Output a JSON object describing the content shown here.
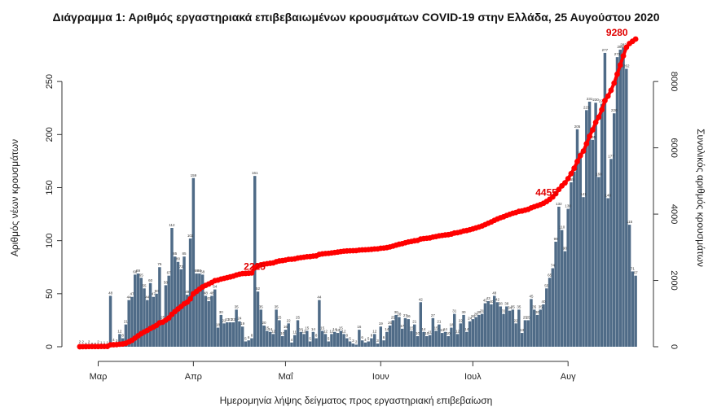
{
  "chart_data": {
    "type": "bar",
    "title": "Διάγραμμα 1: Αριθμός εργαστηριακά επιβεβαιωμένων κρουσμάτων COVID-19 στην Ελλάδα, 25 Αυγούστου 2020",
    "xlabel": "Ημερομηνία λήψης δείγματος προς εργαστηριακή επιβεβαίωση",
    "ylabel": "Αριθμός νέων κρουσμάτων",
    "y2label": "Συνολικός αριθμός κρουσμάτων",
    "ylim": [
      0,
      290
    ],
    "y2lim": [
      0,
      9280
    ],
    "yticks": [
      0,
      50,
      100,
      150,
      200,
      250
    ],
    "y2ticks": [
      0,
      2000,
      4000,
      6000,
      8000
    ],
    "x_month_labels": [
      "Μαρ",
      "Απρ",
      "Μαΐ",
      "Ιουν",
      "Ιουλ",
      "Αυγ"
    ],
    "x_month_day_index": [
      6,
      37,
      67,
      98,
      128,
      159
    ],
    "start_day": "2020-02-24",
    "daily_cases": [
      2,
      2,
      0,
      2,
      0,
      0,
      2,
      1,
      1,
      1,
      48,
      4,
      3,
      12,
      8,
      21,
      44,
      47,
      68,
      69,
      65,
      55,
      44,
      60,
      47,
      50,
      75,
      25,
      58,
      67,
      112,
      85,
      80,
      73,
      85,
      49,
      102,
      159,
      69,
      69,
      68,
      48,
      43,
      48,
      54,
      18,
      30,
      22,
      23,
      23,
      23,
      35,
      24,
      19,
      5,
      6,
      8,
      161,
      52,
      35,
      20,
      15,
      14,
      12,
      35,
      25,
      10,
      16,
      22,
      4,
      11,
      25,
      14,
      12,
      15,
      5,
      14,
      8,
      44,
      15,
      12,
      5,
      12,
      14,
      13,
      15,
      12,
      8,
      5,
      3,
      2,
      16,
      6,
      4,
      5,
      8,
      12,
      3,
      19,
      6,
      14,
      20,
      25,
      30,
      28,
      17,
      27,
      26,
      15,
      21,
      10,
      42,
      14,
      10,
      11,
      27,
      15,
      21,
      13,
      14,
      10,
      18,
      31,
      12,
      22,
      30,
      14,
      24,
      26,
      28,
      30,
      31,
      41,
      43,
      40,
      48,
      42,
      38,
      31,
      38,
      34,
      35,
      22,
      35,
      13,
      25,
      25,
      45,
      35,
      30,
      35,
      40,
      55,
      65,
      74,
      99,
      132,
      110,
      90,
      130,
      155,
      165,
      205,
      180,
      141,
      223,
      231,
      195,
      230,
      160,
      229,
      277,
      140,
      177,
      220,
      273,
      280,
      282,
      262,
      115,
      71,
      67
    ],
    "daily_label_values": [
      2,
      2,
      0,
      2,
      0,
      0,
      2,
      1,
      1,
      1,
      48,
      4,
      3,
      12,
      8,
      21,
      44,
      47,
      68,
      69,
      65,
      55,
      44,
      60,
      47,
      50,
      75,
      25,
      58,
      67,
      112,
      85,
      80,
      73,
      85,
      49,
      102,
      159,
      69,
      69,
      68,
      48,
      43,
      48,
      54,
      18,
      30,
      22,
      23,
      23,
      23,
      35,
      24,
      19,
      5,
      6,
      8,
      161,
      52,
      35,
      20,
      15,
      14,
      12,
      35,
      25,
      10,
      16,
      22,
      4,
      11,
      25,
      14,
      12,
      15,
      5,
      14,
      8,
      44,
      15,
      12,
      5,
      12,
      14,
      13,
      15,
      12,
      8,
      5,
      3,
      2,
      16,
      6,
      4,
      5,
      8,
      12,
      3,
      19,
      6,
      14,
      20,
      25,
      30,
      28,
      17,
      27,
      26,
      15,
      21,
      10,
      42,
      14,
      10,
      11,
      27,
      15,
      21,
      13,
      14,
      10,
      18,
      31,
      12,
      22,
      30,
      14,
      24,
      26,
      28,
      30,
      31,
      41,
      43,
      40,
      48,
      42,
      38,
      31,
      38,
      34,
      35,
      22,
      35,
      13,
      25,
      25,
      45,
      35,
      30,
      35,
      40,
      55,
      65,
      74,
      99,
      132,
      110,
      90,
      130,
      155,
      165,
      205,
      180,
      141,
      223,
      231,
      195,
      230,
      160,
      229,
      277,
      140,
      177,
      220,
      273,
      280,
      282,
      262,
      115,
      71,
      67
    ],
    "cumulative_annotations": [
      {
        "label": "2225",
        "day_index": 58,
        "value": 2225
      },
      {
        "label": "4455",
        "day_index": 153,
        "value": 4455
      },
      {
        "label": "9280",
        "day_index": 176,
        "value": 9280
      }
    ],
    "colors": {
      "bars": "#4f6b87",
      "cumulative": "#ff0000",
      "annotation": "#e00000"
    }
  }
}
